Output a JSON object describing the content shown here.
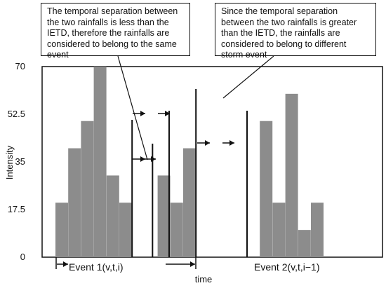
{
  "chart_data": {
    "type": "bar",
    "xlabel": "time",
    "ylabel": "Intensity",
    "ylim": [
      0,
      70
    ],
    "yticks": [
      "0",
      "17.5",
      "35",
      "52.5",
      "70"
    ],
    "bar_color": "#8c8c8c",
    "bars": [
      {
        "x": 0,
        "value": 20
      },
      {
        "x": 1,
        "value": 40
      },
      {
        "x": 2,
        "value": 50
      },
      {
        "x": 3,
        "value": 70
      },
      {
        "x": 4,
        "value": 30
      },
      {
        "x": 5,
        "value": 20
      },
      {
        "x": 8,
        "value": 30
      },
      {
        "x": 9,
        "value": 20
      },
      {
        "x": 10,
        "value": 40
      },
      {
        "x": 16,
        "value": 50
      },
      {
        "x": 17,
        "value": 20
      },
      {
        "x": 18,
        "value": 60
      },
      {
        "x": 19,
        "value": 10
      },
      {
        "x": 20,
        "value": 20
      }
    ],
    "separators": [
      6,
      7.6,
      8.9,
      11,
      15
    ],
    "annotations": {
      "left": "The temporal separation between the two rainfalls is less than the IETD, therefore the rainfalls are considered to belong to the same event",
      "right": "Since the temporal separation between the two rainfalls is greater than the IETD, the rainfalls are considered to belong to different storm event"
    },
    "events": [
      "Event 1(v,t,i)",
      "Event 2(v,t,i−1)"
    ]
  }
}
